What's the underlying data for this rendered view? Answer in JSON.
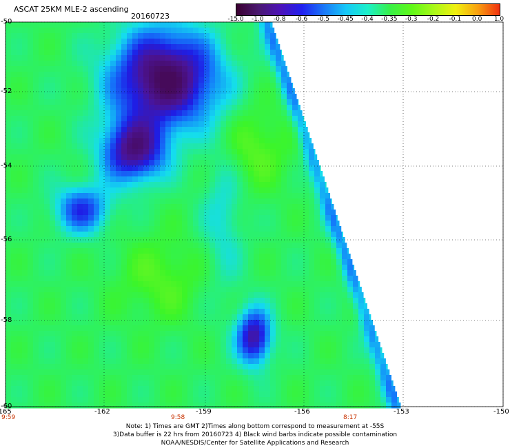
{
  "header": {
    "title": "ASCAT 25KM MLE-2 ascending",
    "date": "20160723"
  },
  "colorbar": {
    "labels": [
      "-15.0",
      "-1.0",
      "-0.8",
      "-0.6",
      "-0.5",
      "-0.45",
      "-0.4",
      "-0.35",
      "-0.3",
      "-0.2",
      "-0.1",
      "0.0",
      "1.0"
    ],
    "colors": [
      "#3a0030",
      "#4a1870",
      "#4c12b8",
      "#2020f0",
      "#1a78f8",
      "#16c8f8",
      "#1cf0c8",
      "#38f048",
      "#60f818",
      "#a8f818",
      "#f0f010",
      "#f8a010",
      "#f03010"
    ]
  },
  "axes": {
    "y_labels": [
      "-50",
      "-52",
      "-54",
      "-56",
      "-58",
      "-60"
    ],
    "x_labels": [
      "-165",
      "-162",
      "-159",
      "-156",
      "-153",
      "-150"
    ]
  },
  "times": [
    "9:59",
    "9:58",
    "8:17"
  ],
  "notes": {
    "line1": "Note: 1) Times are GMT 2)Times along bottom correspond to measurement at -55S",
    "line2": "3)Data buffer is 22 hrs from 20160723 4) Black wind barbs indicate possible contamination",
    "line3": "NOAA/NESDIS/Center for Satellite Applications and Research"
  }
}
